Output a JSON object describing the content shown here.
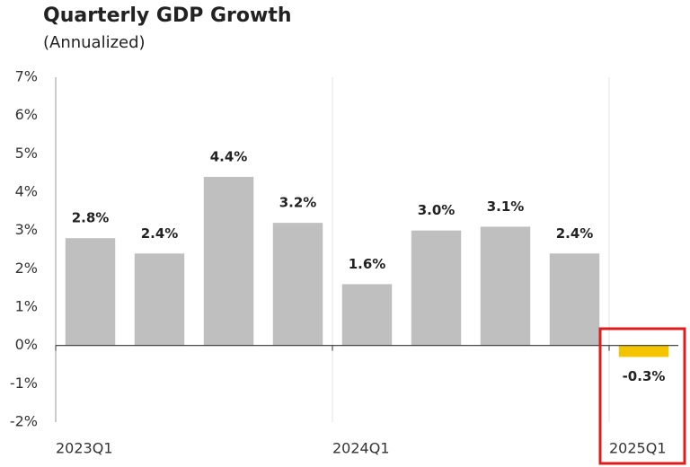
{
  "chart_data": {
    "type": "bar",
    "title": "Quarterly GDP Growth",
    "subtitle": "(Annualized)",
    "categories": [
      "2023Q1",
      null,
      null,
      null,
      "2024Q1",
      null,
      null,
      null,
      "2025Q1"
    ],
    "values": [
      2.8,
      2.4,
      4.4,
      3.2,
      1.6,
      3.0,
      3.1,
      2.4,
      -0.3
    ],
    "value_labels": [
      "2.8%",
      "2.4%",
      "4.4%",
      "3.2%",
      "1.6%",
      "3.0%",
      "3.1%",
      "2.4%",
      "-0.3%"
    ],
    "colors": [
      "#bfbfbf",
      "#bfbfbf",
      "#bfbfbf",
      "#bfbfbf",
      "#bfbfbf",
      "#bfbfbf",
      "#bfbfbf",
      "#bfbfbf",
      "#f5c400"
    ],
    "ylim": [
      -2,
      7
    ],
    "yticks": [
      {
        "value": -2,
        "label": "-2%"
      },
      {
        "value": -1,
        "label": "-1%"
      },
      {
        "value": 0,
        "label": "0%"
      },
      {
        "value": 1,
        "label": "1%"
      },
      {
        "value": 2,
        "label": "2%"
      },
      {
        "value": 3,
        "label": "3%"
      },
      {
        "value": 4,
        "label": "4%"
      },
      {
        "value": 5,
        "label": "5%"
      },
      {
        "value": 6,
        "label": "6%"
      },
      {
        "value": 7,
        "label": "7%"
      }
    ]
  }
}
